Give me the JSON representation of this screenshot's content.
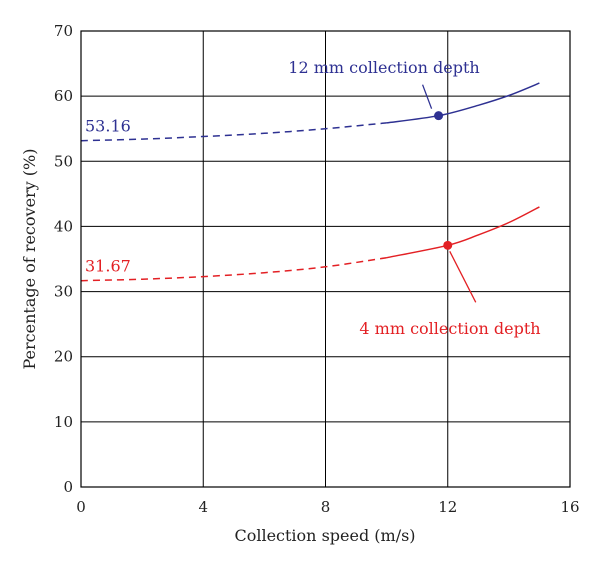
{
  "chart_data": {
    "type": "line",
    "xlabel": "Collection speed (m/s)",
    "ylabel": "Percentage of recovery (%)",
    "xlim": [
      0,
      16
    ],
    "ylim": [
      0,
      70
    ],
    "x_ticks": [
      "0",
      "4",
      "8",
      "12",
      "16"
    ],
    "y_ticks": [
      "0",
      "10",
      "20",
      "30",
      "40",
      "50",
      "60",
      "70"
    ],
    "grid": true,
    "series": [
      {
        "name": "12 mm collection depth",
        "color": "#2e3192",
        "dashed_until_x": 10,
        "x": [
          0,
          2,
          4,
          6,
          8,
          10,
          11.7,
          13,
          14,
          15
        ],
        "y": [
          53.16,
          53.4,
          53.8,
          54.3,
          55.0,
          55.9,
          57.0,
          58.6,
          60.1,
          62.0
        ],
        "marker": {
          "x": 11.7,
          "y": 57.0
        },
        "start_label": "53.16",
        "callout": "12 mm collection depth"
      },
      {
        "name": "4 mm collection depth",
        "color": "#e32024",
        "dashed_until_x": 10,
        "x": [
          0,
          2,
          4,
          6,
          8,
          10,
          12,
          13,
          14,
          15
        ],
        "y": [
          31.67,
          31.9,
          32.3,
          32.9,
          33.8,
          35.2,
          37.1,
          38.7,
          40.6,
          43.0
        ],
        "marker": {
          "x": 12,
          "y": 37.1
        },
        "start_label": "31.67",
        "callout": "4 mm collection depth"
      }
    ]
  }
}
